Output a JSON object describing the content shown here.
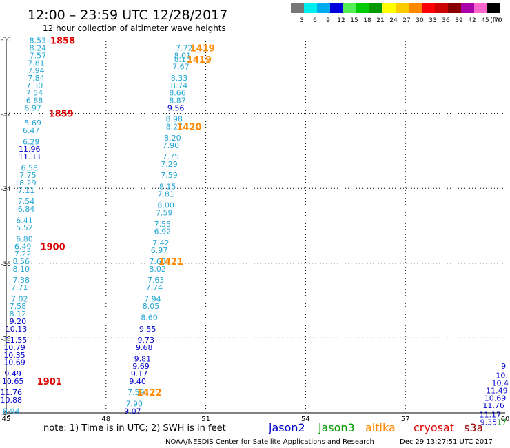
{
  "header": {
    "title": "12:00 – 23:59 UTC 12/28/2017",
    "subtitle": "12 hour collection of altimeter wave heights"
  },
  "colorbar": {
    "labels": [
      "3",
      "6",
      "9",
      "12",
      "15",
      "18",
      "21",
      "24",
      "27",
      "30",
      "33",
      "36",
      "39",
      "42",
      "45",
      "70"
    ],
    "unit": "(ft)",
    "colors": [
      "#777777",
      "#00eeee",
      "#00aaee",
      "#0000dd",
      "#55ee55",
      "#00cc00",
      "#009900",
      "#ffff00",
      "#ffcc00",
      "#ff8800",
      "#ff0000",
      "#cc0000",
      "#880000",
      "#aa00aa",
      "#ff66cc",
      "#000000"
    ]
  },
  "footer": {
    "note": "note:  1) Time is in UTC;  2) SWH is in feet",
    "credit": "NOAA/NESDIS Center for Satellite Applications and Research",
    "timestamp": "Dec 29 13:27:51 UTC 2017"
  },
  "legend": [
    {
      "name": "jason2",
      "color": "#0000cc"
    },
    {
      "name": "jason3",
      "color": "#009900"
    },
    {
      "name": "altika",
      "color": "#ff8800"
    },
    {
      "name": "cryosat",
      "color": "#dd0000"
    },
    {
      "name": "s3a",
      "color": "#990000"
    }
  ],
  "value_colors": {
    "light": "#22a6d4",
    "dark": "#0000cc",
    "green": "#009900"
  },
  "chart_data": {
    "type": "scatter",
    "xlim": [
      45,
      60
    ],
    "ylim": [
      -40,
      -30
    ],
    "xticks": [
      "45",
      "48",
      "51",
      "54",
      "57",
      "60"
    ],
    "yticks": [
      "-30",
      "-32",
      "-34",
      "-36",
      "-38",
      "-40"
    ],
    "tracks": [
      {
        "name": "cryosat",
        "color": "#dd0000",
        "points": [
          {
            "x": 45.95,
            "y": -30.05,
            "v": "8.53"
          },
          {
            "x": 45.95,
            "y": -30.25,
            "v": "8.24"
          },
          {
            "x": 45.95,
            "y": -30.45,
            "v": "7.57"
          },
          {
            "x": 45.9,
            "y": -30.65,
            "v": "7.81"
          },
          {
            "x": 45.9,
            "y": -30.85,
            "v": "7.94"
          },
          {
            "x": 45.9,
            "y": -31.05,
            "v": "7.84"
          },
          {
            "x": 45.85,
            "y": -31.25,
            "v": "7.30"
          },
          {
            "x": 45.85,
            "y": -31.45,
            "v": "7.54"
          },
          {
            "x": 45.85,
            "y": -31.65,
            "v": "6.88"
          },
          {
            "x": 45.8,
            "y": -31.85,
            "v": "6.97"
          },
          {
            "x": 45.8,
            "y": -32.25,
            "v": "5.69"
          },
          {
            "x": 45.75,
            "y": -32.45,
            "v": "6.47"
          },
          {
            "x": 45.75,
            "y": -32.75,
            "v": "6.29"
          },
          {
            "x": 45.7,
            "y": -32.95,
            "v": "11.96"
          },
          {
            "x": 45.7,
            "y": -33.15,
            "v": "11.33"
          },
          {
            "x": 45.7,
            "y": -33.45,
            "v": "6.58"
          },
          {
            "x": 45.65,
            "y": -33.65,
            "v": "7.75"
          },
          {
            "x": 45.65,
            "y": -33.85,
            "v": "8.29"
          },
          {
            "x": 45.6,
            "y": -34.05,
            "v": "7.11"
          },
          {
            "x": 45.6,
            "y": -34.35,
            "v": "7.54"
          },
          {
            "x": 45.6,
            "y": -34.55,
            "v": "6.84"
          },
          {
            "x": 45.55,
            "y": -34.85,
            "v": "6.41"
          },
          {
            "x": 45.55,
            "y": -35.05,
            "v": "5.52"
          },
          {
            "x": 45.55,
            "y": -35.35,
            "v": "6.80"
          },
          {
            "x": 45.5,
            "y": -35.55,
            "v": "6.49"
          },
          {
            "x": 45.5,
            "y": -35.75,
            "v": "7.22"
          },
          {
            "x": 45.45,
            "y": -35.95,
            "v": "8.56"
          },
          {
            "x": 45.45,
            "y": -36.15,
            "v": "8.10"
          },
          {
            "x": 45.45,
            "y": -36.45,
            "v": "7.38"
          },
          {
            "x": 45.4,
            "y": -36.65,
            "v": "7.71"
          },
          {
            "x": 45.4,
            "y": -36.95,
            "v": "7.02"
          },
          {
            "x": 45.35,
            "y": -37.15,
            "v": "7.58"
          },
          {
            "x": 45.35,
            "y": -37.35,
            "v": "8.12"
          },
          {
            "x": 45.35,
            "y": -37.55,
            "v": "9.20"
          },
          {
            "x": 45.3,
            "y": -37.75,
            "v": "10.13"
          },
          {
            "x": 45.3,
            "y": -38.05,
            "v": "11.55"
          },
          {
            "x": 45.25,
            "y": -38.25,
            "v": "10.79"
          },
          {
            "x": 45.25,
            "y": -38.45,
            "v": "10.35"
          },
          {
            "x": 45.25,
            "y": -38.65,
            "v": "10.69"
          },
          {
            "x": 45.2,
            "y": -38.95,
            "v": "9.49"
          },
          {
            "x": 45.2,
            "y": -39.15,
            "v": "10.65"
          },
          {
            "x": 45.15,
            "y": -39.45,
            "v": "11.76"
          },
          {
            "x": 45.15,
            "y": -39.65,
            "v": "10.88"
          },
          {
            "x": 45.15,
            "y": -39.95,
            "v": "8.94"
          }
        ]
      },
      {
        "name": "altika",
        "color": "#ff8800",
        "points": [
          {
            "x": 50.35,
            "y": -30.25,
            "v": "7.72"
          },
          {
            "x": 50.3,
            "y": -30.45,
            "v": "8.01"
          },
          {
            "x": 50.3,
            "y": -30.55,
            "v": "8.13"
          },
          {
            "x": 50.25,
            "y": -30.75,
            "v": "7.67"
          },
          {
            "x": 50.2,
            "y": -31.05,
            "v": "8.33"
          },
          {
            "x": 50.2,
            "y": -31.25,
            "v": "8.74"
          },
          {
            "x": 50.15,
            "y": -31.45,
            "v": "8.66"
          },
          {
            "x": 50.15,
            "y": -31.65,
            "v": "8.87"
          },
          {
            "x": 50.1,
            "y": -31.85,
            "v": "9.56"
          },
          {
            "x": 50.05,
            "y": -32.15,
            "v": "8.98"
          },
          {
            "x": 50.05,
            "y": -32.35,
            "v": "8.27"
          },
          {
            "x": 50.0,
            "y": -32.65,
            "v": "8.20"
          },
          {
            "x": 49.95,
            "y": -32.85,
            "v": "7.90"
          },
          {
            "x": 49.95,
            "y": -33.15,
            "v": "7.75"
          },
          {
            "x": 49.9,
            "y": -33.35,
            "v": "7.29"
          },
          {
            "x": 49.9,
            "y": -33.65,
            "v": "7.59"
          },
          {
            "x": 49.85,
            "y": -33.95,
            "v": "8.15"
          },
          {
            "x": 49.8,
            "y": -34.15,
            "v": "7.81"
          },
          {
            "x": 49.8,
            "y": -34.45,
            "v": "8.00"
          },
          {
            "x": 49.75,
            "y": -34.65,
            "v": "7.59"
          },
          {
            "x": 49.7,
            "y": -34.95,
            "v": "7.55"
          },
          {
            "x": 49.7,
            "y": -35.15,
            "v": "6.92"
          },
          {
            "x": 49.65,
            "y": -35.45,
            "v": "7.42"
          },
          {
            "x": 49.6,
            "y": -35.65,
            "v": "6.97"
          },
          {
            "x": 49.55,
            "y": -35.95,
            "v": "7.63"
          },
          {
            "x": 49.55,
            "y": -36.15,
            "v": "8.02"
          },
          {
            "x": 49.5,
            "y": -36.45,
            "v": "7.63"
          },
          {
            "x": 49.45,
            "y": -36.65,
            "v": "7.74"
          },
          {
            "x": 49.4,
            "y": -36.95,
            "v": "7.94"
          },
          {
            "x": 49.35,
            "y": -37.15,
            "v": "8.05"
          },
          {
            "x": 49.3,
            "y": -37.45,
            "v": "8.60"
          },
          {
            "x": 49.25,
            "y": -37.75,
            "v": "9.55"
          },
          {
            "x": 49.2,
            "y": -38.05,
            "v": "9.73"
          },
          {
            "x": 49.15,
            "y": -38.25,
            "v": "9.68"
          },
          {
            "x": 49.1,
            "y": -38.55,
            "v": "9.81"
          },
          {
            "x": 49.05,
            "y": -38.75,
            "v": "9.69"
          },
          {
            "x": 49.0,
            "y": -38.95,
            "v": "9.17"
          },
          {
            "x": 48.95,
            "y": -39.15,
            "v": "9.40"
          },
          {
            "x": 48.9,
            "y": -39.45,
            "v": "7.59"
          },
          {
            "x": 48.85,
            "y": -39.75,
            "v": "7.90"
          },
          {
            "x": 48.8,
            "y": -39.95,
            "v": "9.07"
          }
        ]
      },
      {
        "name": "jason2",
        "color": "#0000cc",
        "points": [
          {
            "x": 59.95,
            "y": -38.75,
            "v": "9"
          },
          {
            "x": 59.9,
            "y": -39.0,
            "v": "10."
          },
          {
            "x": 59.85,
            "y": -39.2,
            "v": "10.4"
          },
          {
            "x": 59.75,
            "y": -39.4,
            "v": "11.49"
          },
          {
            "x": 59.7,
            "y": -39.6,
            "v": "10.69"
          },
          {
            "x": 59.65,
            "y": -39.8,
            "v": "11.76"
          },
          {
            "x": 59.55,
            "y": -40.05,
            "v": "11.17"
          },
          {
            "x": 59.5,
            "y": -40.25,
            "v": "9.35"
          }
        ]
      },
      {
        "name": "jason3",
        "color": "#009900",
        "points": [
          {
            "x": 59.9,
            "y": -40.25,
            "v": "17"
          }
        ]
      }
    ],
    "time_labels": [
      {
        "text": "1858",
        "color": "#dd0000",
        "x": 46.7,
        "y": -30.05
      },
      {
        "text": "1859",
        "color": "#dd0000",
        "x": 46.65,
        "y": -32.0
      },
      {
        "text": "1900",
        "color": "#dd0000",
        "x": 46.4,
        "y": -35.55
      },
      {
        "text": "1901",
        "color": "#dd0000",
        "x": 46.3,
        "y": -39.15
      },
      {
        "text": "1419",
        "color": "#ff8800",
        "x": 50.9,
        "y": -30.25
      },
      {
        "text": "1419",
        "color": "#ff8800",
        "x": 50.8,
        "y": -30.55
      },
      {
        "text": "1420",
        "color": "#ff8800",
        "x": 50.5,
        "y": -32.35
      },
      {
        "text": "1421",
        "color": "#ff8800",
        "x": 49.95,
        "y": -35.95
      },
      {
        "text": "1422",
        "color": "#ff8800",
        "x": 49.3,
        "y": -39.45
      }
    ]
  }
}
